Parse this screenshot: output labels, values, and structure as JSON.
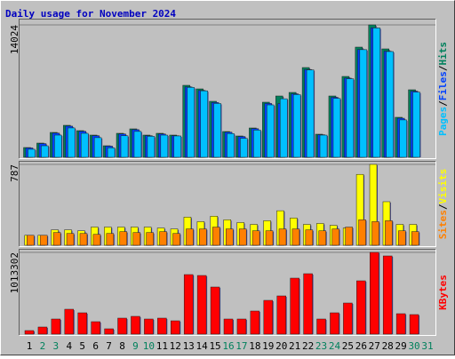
{
  "title": "Daily usage for November 2024",
  "categories": [
    "1",
    "2",
    "3",
    "4",
    "5",
    "6",
    "7",
    "8",
    "9",
    "10",
    "11",
    "12",
    "13",
    "14",
    "15",
    "16",
    "17",
    "18",
    "19",
    "20",
    "21",
    "22",
    "23",
    "24",
    "25",
    "26",
    "27",
    "28",
    "29",
    "30",
    "31"
  ],
  "category_colors": [
    "#000000",
    "#00805c",
    "#00805c",
    "#000000",
    "#000000",
    "#000000",
    "#000000",
    "#000000",
    "#00805c",
    "#00805c",
    "#000000",
    "#000000",
    "#000000",
    "#000000",
    "#000000",
    "#00805c",
    "#00805c",
    "#000000",
    "#000000",
    "#000000",
    "#000000",
    "#000000",
    "#00805c",
    "#00805c",
    "#000000",
    "#000000",
    "#000000",
    "#000000",
    "#000000",
    "#00805c",
    "#00805c"
  ],
  "chart_data": [
    {
      "type": "bar",
      "ylim": [
        0,
        14024
      ],
      "yticks": [
        14024
      ],
      "series": [
        {
          "name": "Hits",
          "color": "#00805c",
          "values": [
            1035,
            1506,
            2635,
            3388,
            2823,
            2353,
            1223,
            2541,
            3012,
            2353,
            2541,
            2353,
            7624,
            7247,
            5930,
            2729,
            2259,
            3106,
            5836,
            6494,
            6871,
            9506,
            2447,
            6494,
            8565,
            11671,
            14024,
            11483,
            4236,
            7153,
            null
          ]
        },
        {
          "name": "Files",
          "color": "#0040ff",
          "values": [
            990,
            1450,
            2560,
            3300,
            2750,
            2290,
            1180,
            2470,
            2930,
            2290,
            2470,
            2290,
            7450,
            7080,
            5800,
            2660,
            2200,
            3030,
            5700,
            5700,
            6720,
            9300,
            2390,
            6350,
            8380,
            11420,
            13720,
            11240,
            4140,
            7000,
            null
          ]
        },
        {
          "name": "Pages",
          "color": "#00c0ff",
          "values": [
            850,
            1220,
            2350,
            3110,
            2540,
            2080,
            1000,
            2280,
            2740,
            2220,
            2350,
            2260,
            7400,
            7040,
            5700,
            2510,
            2010,
            2880,
            5550,
            6200,
            6640,
            9260,
            2350,
            6240,
            8320,
            11400,
            13700,
            11200,
            3960,
            6900,
            null
          ]
        }
      ]
    },
    {
      "type": "bar",
      "ylim": [
        0,
        787
      ],
      "yticks": [
        787
      ],
      "series": [
        {
          "name": "Visits",
          "color": "#ffff00",
          "values": [
            97,
            97,
            150,
            150,
            141,
            177,
            177,
            177,
            177,
            177,
            168,
            159,
            274,
            230,
            283,
            248,
            221,
            203,
            239,
            336,
            265,
            203,
            212,
            194,
            168,
            690,
            787,
            424,
            203,
            203,
            null
          ]
        },
        {
          "name": "Sites",
          "color": "#ff8000",
          "values": [
            97,
            97,
            124,
            115,
            115,
            106,
            115,
            133,
            124,
            124,
            133,
            115,
            159,
            159,
            177,
            159,
            159,
            141,
            141,
            159,
            159,
            150,
            141,
            159,
            177,
            248,
            230,
            239,
            141,
            133,
            null
          ]
        }
      ]
    },
    {
      "type": "bar",
      "ylim": [
        0,
        1013302
      ],
      "yticks": [
        1013302
      ],
      "series": [
        {
          "name": "KBytes",
          "color": "#ff0000",
          "values": [
            44057,
            88114,
            187242,
            308400,
            264343,
            154200,
            66086,
            198257,
            220286,
            187242,
            198257,
            165214,
            737957,
            726943,
            583757,
            187242,
            187242,
            286371,
            418543,
            473614,
            693900,
            748971,
            187242,
            264343,
            385500,
            660857,
            1013302,
            969257,
            253329,
            242314,
            null
          ]
        }
      ]
    }
  ]
}
